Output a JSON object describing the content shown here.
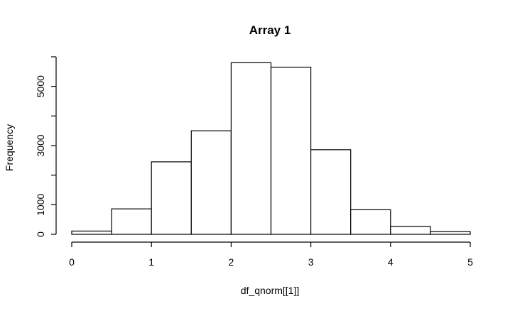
{
  "chart_data": {
    "type": "bar",
    "title": "Array 1",
    "xlabel": "df_qnorm[[1]]",
    "ylabel": "Frequency",
    "bins": [
      {
        "start": 0.0,
        "end": 0.5,
        "value": 110
      },
      {
        "start": 0.5,
        "end": 1.0,
        "value": 860
      },
      {
        "start": 1.0,
        "end": 1.5,
        "value": 2450
      },
      {
        "start": 1.5,
        "end": 2.0,
        "value": 3500
      },
      {
        "start": 2.0,
        "end": 2.5,
        "value": 5800
      },
      {
        "start": 2.5,
        "end": 3.0,
        "value": 5650
      },
      {
        "start": 3.0,
        "end": 3.5,
        "value": 2860
      },
      {
        "start": 3.5,
        "end": 4.0,
        "value": 830
      },
      {
        "start": 4.0,
        "end": 4.5,
        "value": 270
      },
      {
        "start": 4.5,
        "end": 5.0,
        "value": 90
      }
    ],
    "xlim": [
      0,
      5
    ],
    "ylim": [
      0,
      6000
    ],
    "x_ticks": [
      {
        "value": 0,
        "label": "0"
      },
      {
        "value": 1,
        "label": "1"
      },
      {
        "value": 2,
        "label": "2"
      },
      {
        "value": 3,
        "label": "3"
      },
      {
        "value": 4,
        "label": "4"
      },
      {
        "value": 5,
        "label": "5"
      }
    ],
    "y_ticks": [
      {
        "value": 0,
        "label": "0"
      },
      {
        "value": 1000,
        "label": "1000"
      },
      {
        "value": 2000,
        "label": ""
      },
      {
        "value": 3000,
        "label": "3000"
      },
      {
        "value": 4000,
        "label": ""
      },
      {
        "value": 5000,
        "label": "5000"
      },
      {
        "value": 6000,
        "label": ""
      }
    ],
    "grid": false,
    "colors": {
      "bar_fill": "#ffffff",
      "bar_stroke": "#000000",
      "background": "#ffffff"
    }
  }
}
